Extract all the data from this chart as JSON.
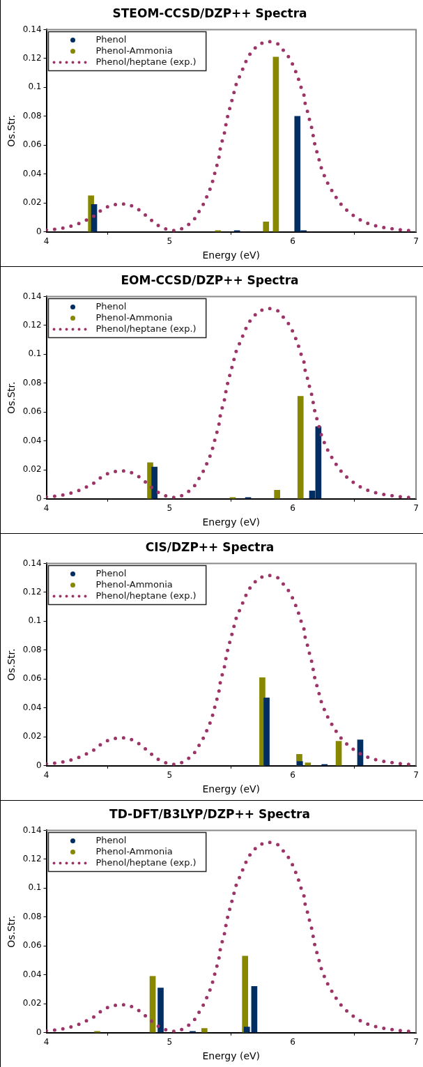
{
  "chart_data": [
    {
      "type": "bar",
      "title": "STEOM-CCSD/DZP++ Spectra",
      "xlabel": "Energy (eV)",
      "ylabel": "Os.Str.",
      "xlim": [
        4,
        7
      ],
      "xticks": [
        4,
        5,
        6,
        7
      ],
      "ylim": [
        0,
        0.14
      ],
      "yticks": [
        0,
        0.02,
        0.04,
        0.06,
        0.08,
        0.1,
        0.12,
        0.14
      ],
      "grid": false,
      "legend": "top left",
      "series": [
        {
          "name": "Phenol",
          "color": "#002d62",
          "x": [
            4.41,
            5.57,
            6.06,
            6.11
          ],
          "values": [
            0.019,
            0.001,
            0.08,
            0.001
          ]
        },
        {
          "name": "Phenol-Ammonia",
          "color": "#878800",
          "x": [
            4.34,
            5.37,
            5.76,
            5.84
          ],
          "values": [
            0.025,
            0.001,
            0.007,
            0.121
          ]
        },
        {
          "name": "Phenol/heptane (exp.)",
          "type": "line",
          "color": "#9c3468",
          "line_style": "dotted",
          "marker": "none",
          "x": [
            4.0,
            4.08,
            4.16,
            4.24,
            4.31,
            4.38,
            4.44,
            4.51,
            4.59,
            4.67,
            4.74,
            4.8,
            4.86,
            4.92,
            5.0,
            5.07,
            5.14,
            5.2,
            5.24,
            5.28,
            5.31,
            5.34,
            5.36,
            5.38,
            5.4,
            5.41,
            5.43,
            5.45,
            5.46,
            5.48,
            5.5,
            5.52,
            5.54,
            5.57,
            5.6,
            5.63,
            5.67,
            5.73,
            5.8,
            5.88,
            5.93,
            5.98,
            6.01,
            6.04,
            6.06,
            6.09,
            6.1,
            6.12,
            6.14,
            6.16,
            6.17,
            6.19,
            6.21,
            6.23,
            6.26,
            6.29,
            6.33,
            6.37,
            6.42,
            6.48,
            6.55,
            6.62,
            6.7,
            6.78,
            6.86,
            6.94
          ],
          "values": [
            0.0013,
            0.002,
            0.003,
            0.005,
            0.0075,
            0.0106,
            0.0146,
            0.018,
            0.0196,
            0.019,
            0.016,
            0.012,
            0.0075,
            0.0037,
            0.001,
            0.001,
            0.004,
            0.0087,
            0.0142,
            0.02,
            0.026,
            0.032,
            0.0386,
            0.0448,
            0.051,
            0.057,
            0.064,
            0.07,
            0.076,
            0.083,
            0.089,
            0.0956,
            0.102,
            0.108,
            0.114,
            0.12,
            0.1254,
            0.13,
            0.132,
            0.13,
            0.125,
            0.1195,
            0.1137,
            0.1076,
            0.1016,
            0.095,
            0.089,
            0.083,
            0.076,
            0.07,
            0.0635,
            0.057,
            0.051,
            0.0446,
            0.038,
            0.0325,
            0.0268,
            0.0213,
            0.0163,
            0.012,
            0.0082,
            0.0055,
            0.0035,
            0.0025,
            0.0015,
            0.001
          ]
        }
      ]
    },
    {
      "type": "bar",
      "title": "EOM-CCSD/DZP++ Spectra",
      "xlabel": "Energy (eV)",
      "ylabel": "Os.Str.",
      "xlim": [
        4,
        7
      ],
      "xticks": [
        4,
        5,
        6,
        7
      ],
      "ylim": [
        0,
        0.14
      ],
      "yticks": [
        0,
        0.02,
        0.04,
        0.06,
        0.08,
        0.1,
        0.12,
        0.14
      ],
      "grid": false,
      "legend": "top left",
      "series": [
        {
          "name": "Phenol",
          "color": "#002d62",
          "x": [
            4.9,
            5.66,
            6.18,
            6.23
          ],
          "values": [
            0.022,
            0.001,
            0.0055,
            0.05
          ]
        },
        {
          "name": "Phenol-Ammonia",
          "color": "#878800",
          "x": [
            4.82,
            5.49,
            5.85,
            6.04
          ],
          "values": [
            0.025,
            0.001,
            0.006,
            0.071
          ]
        },
        {
          "name": "Phenol/heptane (exp.)",
          "type": "line",
          "color": "#9c3468",
          "line_style": "dotted",
          "marker": "none",
          "x": [
            4.0,
            4.08,
            4.16,
            4.24,
            4.31,
            4.38,
            4.44,
            4.51,
            4.59,
            4.67,
            4.74,
            4.8,
            4.86,
            4.92,
            5.0,
            5.07,
            5.14,
            5.2,
            5.24,
            5.28,
            5.31,
            5.34,
            5.36,
            5.38,
            5.4,
            5.41,
            5.43,
            5.45,
            5.46,
            5.48,
            5.5,
            5.52,
            5.54,
            5.57,
            5.6,
            5.63,
            5.67,
            5.73,
            5.8,
            5.88,
            5.93,
            5.98,
            6.01,
            6.04,
            6.06,
            6.09,
            6.1,
            6.12,
            6.14,
            6.16,
            6.17,
            6.19,
            6.21,
            6.23,
            6.26,
            6.29,
            6.33,
            6.37,
            6.42,
            6.48,
            6.55,
            6.62,
            6.7,
            6.78,
            6.86,
            6.94
          ],
          "values": [
            0.0013,
            0.002,
            0.003,
            0.005,
            0.0075,
            0.0106,
            0.0146,
            0.018,
            0.0196,
            0.019,
            0.016,
            0.012,
            0.0075,
            0.0037,
            0.001,
            0.001,
            0.004,
            0.0087,
            0.0142,
            0.02,
            0.026,
            0.032,
            0.0386,
            0.0448,
            0.051,
            0.057,
            0.064,
            0.07,
            0.076,
            0.083,
            0.089,
            0.0956,
            0.102,
            0.108,
            0.114,
            0.12,
            0.1254,
            0.13,
            0.132,
            0.13,
            0.125,
            0.1195,
            0.1137,
            0.1076,
            0.1016,
            0.095,
            0.089,
            0.083,
            0.076,
            0.07,
            0.0635,
            0.057,
            0.051,
            0.0446,
            0.038,
            0.0325,
            0.0268,
            0.0213,
            0.0163,
            0.012,
            0.0082,
            0.0055,
            0.0035,
            0.0025,
            0.0015,
            0.001
          ]
        }
      ]
    },
    {
      "type": "bar",
      "title": "CIS/DZP++ Spectra",
      "xlabel": "Energy (eV)",
      "ylabel": "Os.Str.",
      "xlim": [
        4,
        7
      ],
      "xticks": [
        4,
        5,
        6,
        7
      ],
      "ylim": [
        0,
        0.14
      ],
      "yticks": [
        0,
        0.02,
        0.04,
        0.06,
        0.08,
        0.1,
        0.12,
        0.14
      ],
      "grid": false,
      "legend": "top left",
      "series": [
        {
          "name": "Phenol",
          "color": "#002d62",
          "x": [
            5.81,
            6.08,
            6.28,
            6.57
          ],
          "values": [
            0.047,
            0.003,
            0.001,
            0.018
          ]
        },
        {
          "name": "Phenol-Ammonia",
          "color": "#878800",
          "x": [
            5.73,
            6.03,
            6.1,
            6.35
          ],
          "values": [
            0.061,
            0.008,
            0.002,
            0.017
          ]
        },
        {
          "name": "Phenol/heptane (exp.)",
          "type": "line",
          "color": "#9c3468",
          "line_style": "dotted",
          "marker": "none",
          "x": [
            4.0,
            4.08,
            4.16,
            4.24,
            4.31,
            4.38,
            4.44,
            4.51,
            4.59,
            4.67,
            4.74,
            4.8,
            4.86,
            4.92,
            5.0,
            5.07,
            5.14,
            5.2,
            5.24,
            5.28,
            5.31,
            5.34,
            5.36,
            5.38,
            5.4,
            5.41,
            5.43,
            5.45,
            5.46,
            5.48,
            5.5,
            5.52,
            5.54,
            5.57,
            5.6,
            5.63,
            5.67,
            5.73,
            5.8,
            5.88,
            5.93,
            5.98,
            6.01,
            6.04,
            6.06,
            6.09,
            6.1,
            6.12,
            6.14,
            6.16,
            6.17,
            6.19,
            6.21,
            6.23,
            6.26,
            6.29,
            6.33,
            6.37,
            6.42,
            6.48,
            6.55,
            6.62,
            6.7,
            6.78,
            6.86,
            6.94
          ],
          "values": [
            0.0013,
            0.002,
            0.003,
            0.005,
            0.0075,
            0.0106,
            0.0146,
            0.018,
            0.0196,
            0.019,
            0.016,
            0.012,
            0.0075,
            0.0037,
            0.001,
            0.001,
            0.004,
            0.0087,
            0.0142,
            0.02,
            0.026,
            0.032,
            0.0386,
            0.0448,
            0.051,
            0.057,
            0.064,
            0.07,
            0.076,
            0.083,
            0.089,
            0.0956,
            0.102,
            0.108,
            0.114,
            0.12,
            0.1254,
            0.13,
            0.132,
            0.13,
            0.125,
            0.1195,
            0.1137,
            0.1076,
            0.1016,
            0.095,
            0.089,
            0.083,
            0.076,
            0.07,
            0.0635,
            0.057,
            0.051,
            0.0446,
            0.038,
            0.0325,
            0.0268,
            0.0213,
            0.0163,
            0.012,
            0.0082,
            0.0055,
            0.0035,
            0.0025,
            0.0015,
            0.001
          ]
        }
      ]
    },
    {
      "type": "bar",
      "title": "TD-DFT/B3LYP/DZP++ Spectra",
      "xlabel": "Energy (eV)",
      "ylabel": "Os.Str.",
      "xlim": [
        4,
        7
      ],
      "xticks": [
        4,
        5,
        6,
        7
      ],
      "ylim": [
        0,
        0.14
      ],
      "yticks": [
        0,
        0.02,
        0.04,
        0.06,
        0.08,
        0.1,
        0.12,
        0.14
      ],
      "grid": false,
      "legend": "top left",
      "series": [
        {
          "name": "Phenol",
          "color": "#002d62",
          "x": [
            4.95,
            5.21,
            5.65,
            5.71
          ],
          "values": [
            0.031,
            0.001,
            0.004,
            0.032
          ]
        },
        {
          "name": "Phenol-Ammonia",
          "color": "#878800",
          "x": [
            4.39,
            4.84,
            5.26,
            5.59
          ],
          "values": [
            0.001,
            0.039,
            0.003,
            0.053
          ]
        },
        {
          "name": "Phenol/heptane (exp.)",
          "type": "line",
          "color": "#9c3468",
          "line_style": "dotted",
          "marker": "none",
          "x": [
            4.0,
            4.08,
            4.16,
            4.24,
            4.31,
            4.38,
            4.44,
            4.51,
            4.59,
            4.67,
            4.74,
            4.8,
            4.86,
            4.92,
            5.0,
            5.07,
            5.14,
            5.2,
            5.24,
            5.28,
            5.31,
            5.34,
            5.36,
            5.38,
            5.4,
            5.41,
            5.43,
            5.45,
            5.46,
            5.48,
            5.5,
            5.52,
            5.54,
            5.57,
            5.6,
            5.63,
            5.67,
            5.73,
            5.8,
            5.88,
            5.93,
            5.98,
            6.01,
            6.04,
            6.06,
            6.09,
            6.1,
            6.12,
            6.14,
            6.16,
            6.17,
            6.19,
            6.21,
            6.23,
            6.26,
            6.29,
            6.33,
            6.37,
            6.42,
            6.48,
            6.55,
            6.62,
            6.7,
            6.78,
            6.86,
            6.94
          ],
          "values": [
            0.0013,
            0.002,
            0.003,
            0.005,
            0.0075,
            0.0106,
            0.0146,
            0.018,
            0.0196,
            0.019,
            0.016,
            0.012,
            0.0075,
            0.0037,
            0.001,
            0.001,
            0.004,
            0.0087,
            0.0142,
            0.02,
            0.026,
            0.032,
            0.0386,
            0.0448,
            0.051,
            0.057,
            0.064,
            0.07,
            0.076,
            0.083,
            0.089,
            0.0956,
            0.102,
            0.108,
            0.114,
            0.12,
            0.1254,
            0.13,
            0.132,
            0.13,
            0.125,
            0.1195,
            0.1137,
            0.1076,
            0.1016,
            0.095,
            0.089,
            0.083,
            0.076,
            0.07,
            0.0635,
            0.057,
            0.051,
            0.0446,
            0.038,
            0.0325,
            0.0268,
            0.0213,
            0.0163,
            0.012,
            0.0082,
            0.0055,
            0.0035,
            0.0025,
            0.0015,
            0.001
          ]
        }
      ]
    }
  ]
}
